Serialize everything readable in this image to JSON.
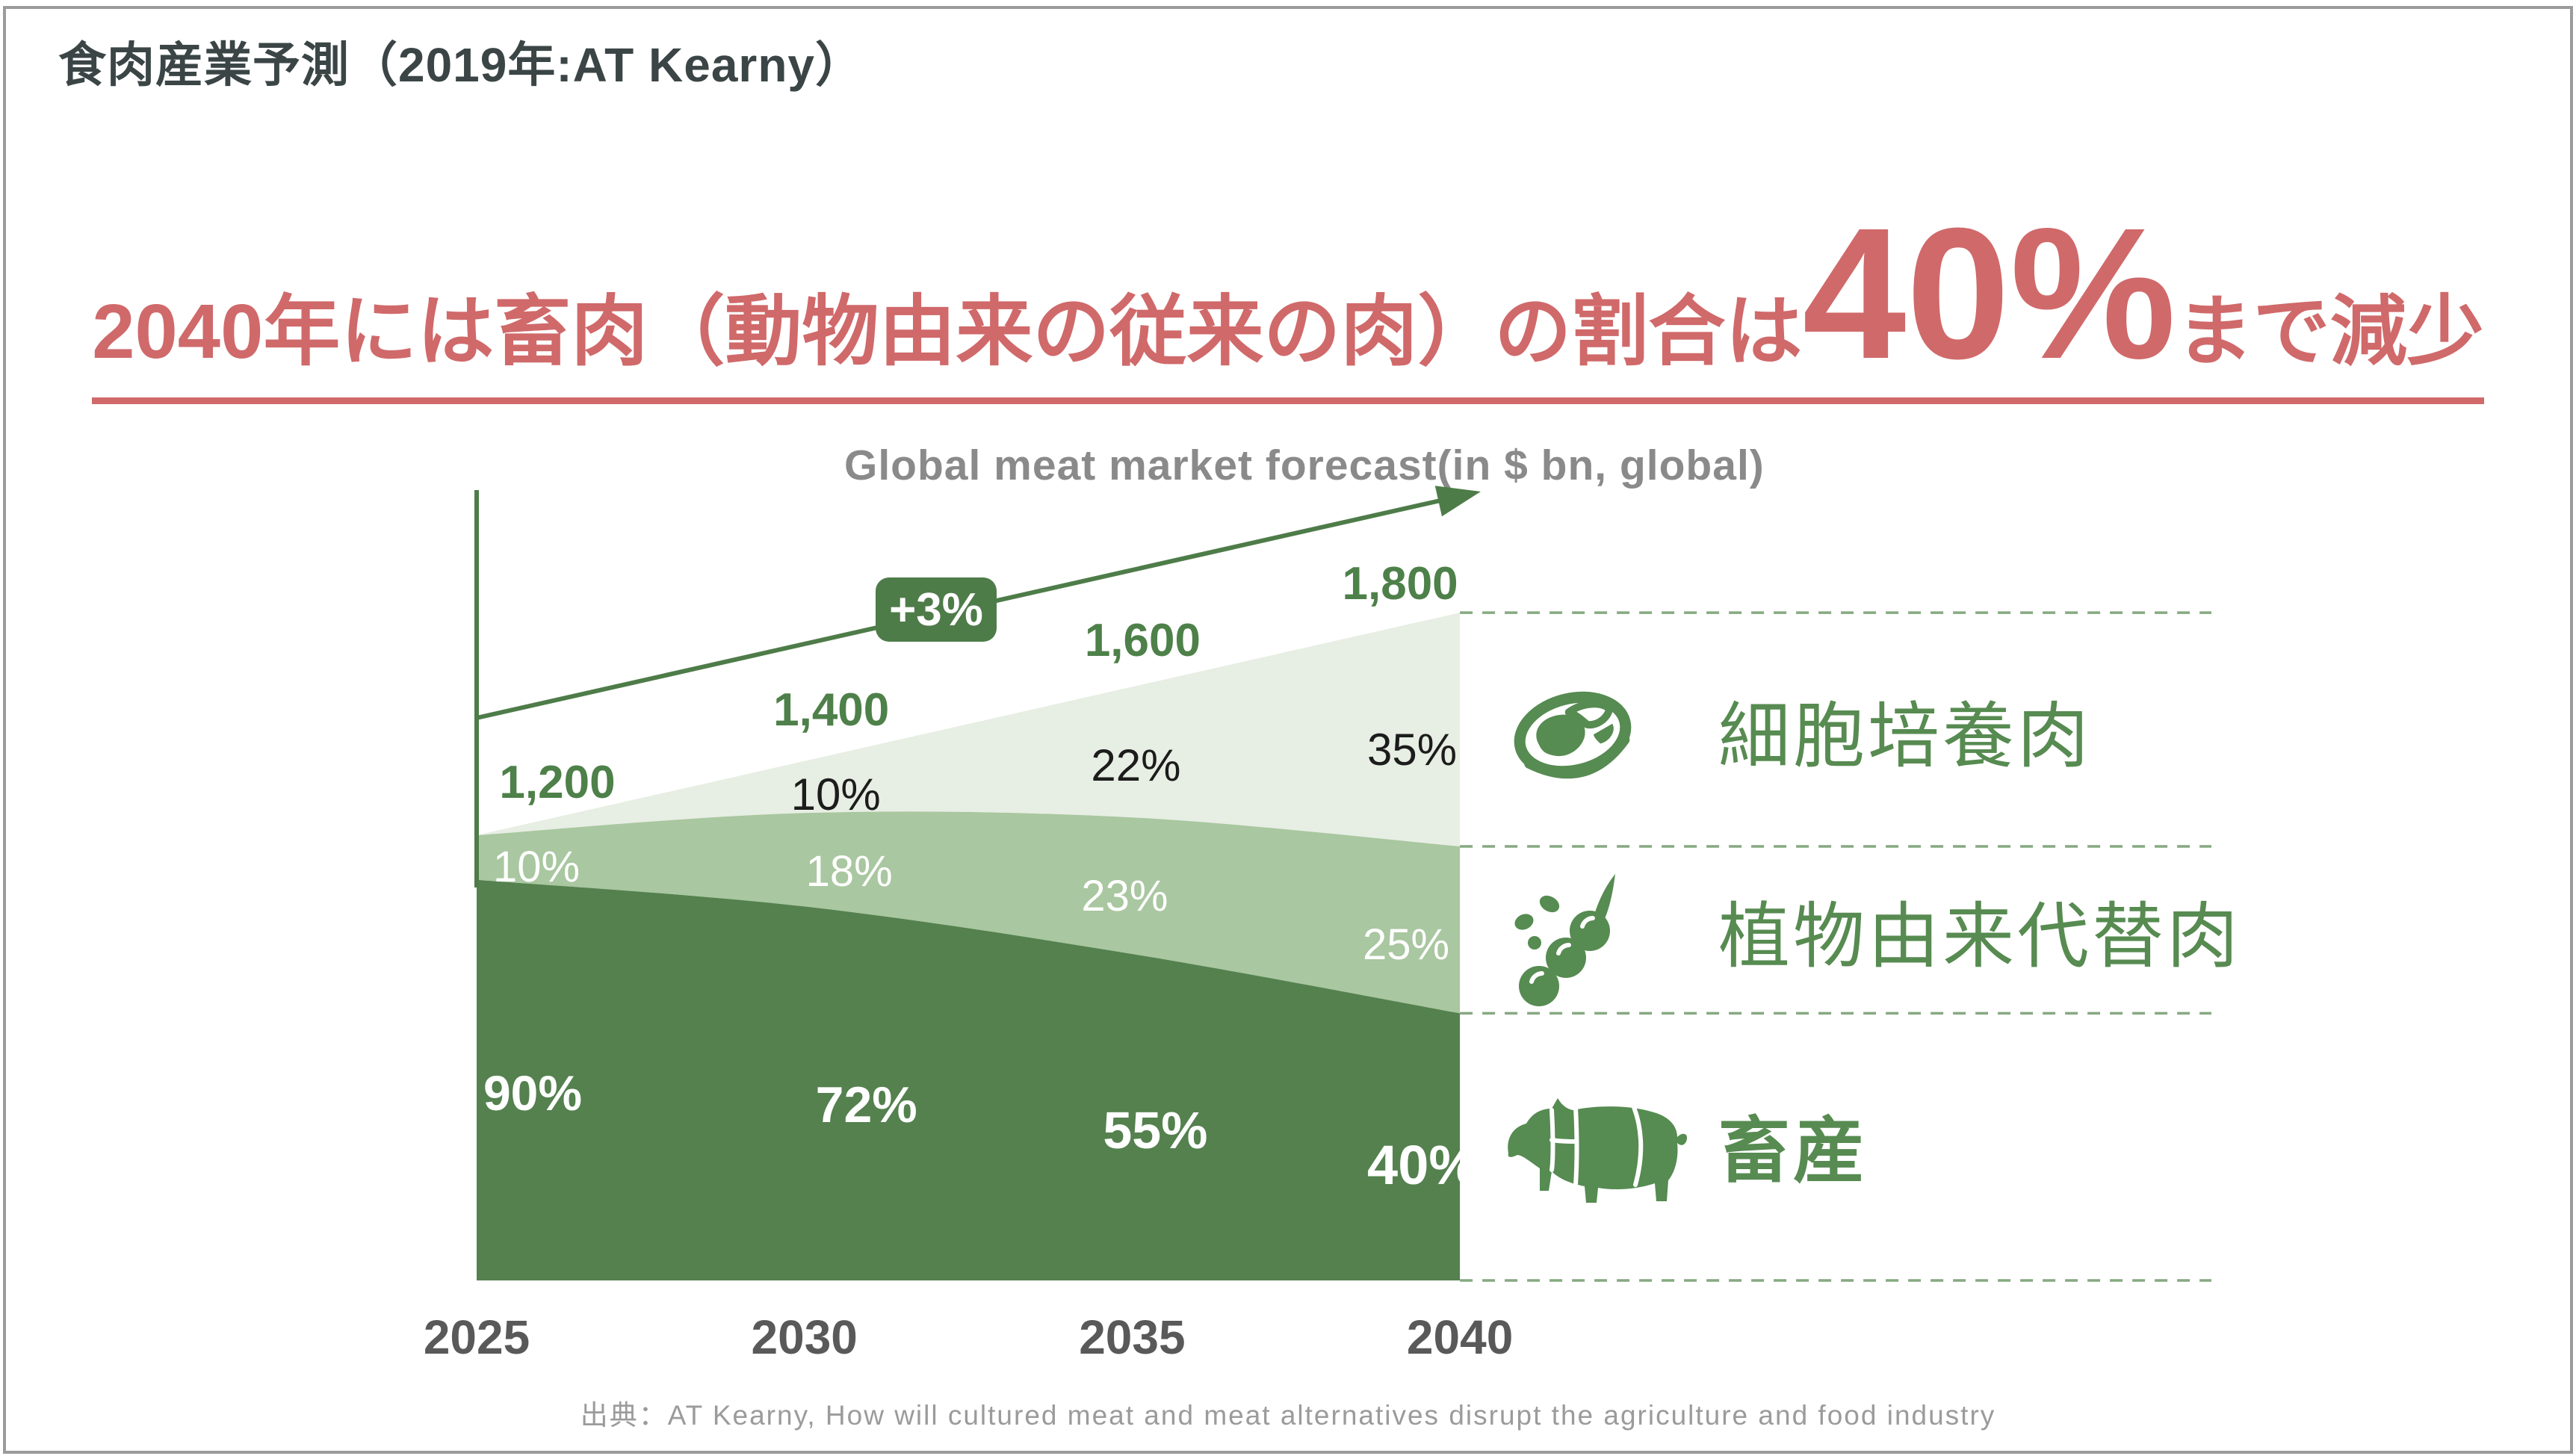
{
  "slide": {
    "title": "食肉産業予測（2019年:AT Kearny）",
    "source": "出典：AT Kearny, How will cultured meat and meat alternatives disrupt the agriculture and food industry"
  },
  "headline": {
    "prefix": "2040年には畜肉（動物由来の従来の肉）の割合は",
    "highlight": "40%",
    "suffix": "まで減少"
  },
  "chart_data": {
    "type": "area",
    "stacked": true,
    "title": "Global meat market forecast(in $ bn, global)",
    "unit": "$ bn",
    "x": [
      2025,
      2030,
      2035,
      2040
    ],
    "x_labels": [
      "2025",
      "2030",
      "2035",
      "2040"
    ],
    "totals": [
      1200,
      1400,
      1600,
      1800
    ],
    "total_labels": [
      "1,200",
      "1,400",
      "1,600",
      "1,800"
    ],
    "growth_annotation": "+3%",
    "series": [
      {
        "name": "細胞培養肉",
        "english": "cultured meat",
        "pct": [
          0,
          10,
          22,
          35
        ],
        "pct_labels": [
          "",
          "10%",
          "22%",
          "35%"
        ],
        "color": "#e7eee3"
      },
      {
        "name": "植物由来代替肉",
        "english": "plant-based alternative meat",
        "pct": [
          10,
          18,
          23,
          25
        ],
        "pct_labels": [
          "10%",
          "18%",
          "23%",
          "25%"
        ],
        "color": "#a9c7a0"
      },
      {
        "name": "畜産",
        "english": "livestock",
        "pct": [
          90,
          72,
          55,
          40
        ],
        "pct_labels": [
          "90%",
          "72%",
          "55%",
          "40%"
        ],
        "color": "#54814e"
      }
    ],
    "legend_position": "right",
    "guides": "dashed horizontal guides at 2040 boundaries"
  },
  "legend": {
    "items": [
      {
        "label": "細胞培養肉",
        "icon": "steak-icon",
        "bold": false
      },
      {
        "label": "植物由来代替肉",
        "icon": "soybean-icon",
        "bold": false
      },
      {
        "label": "畜産",
        "icon": "pig-icon",
        "bold": true
      }
    ]
  },
  "colors": {
    "accent_red": "#d0696a",
    "green_dark": "#54814e",
    "green_medium": "#a9c7a0",
    "green_light": "#e7eee3",
    "green_line": "#4e7c49",
    "green_value_text": "#4e8049",
    "legend_green": "#578b51",
    "year_gray": "#595959",
    "title_gray": "#8a8a8a"
  }
}
